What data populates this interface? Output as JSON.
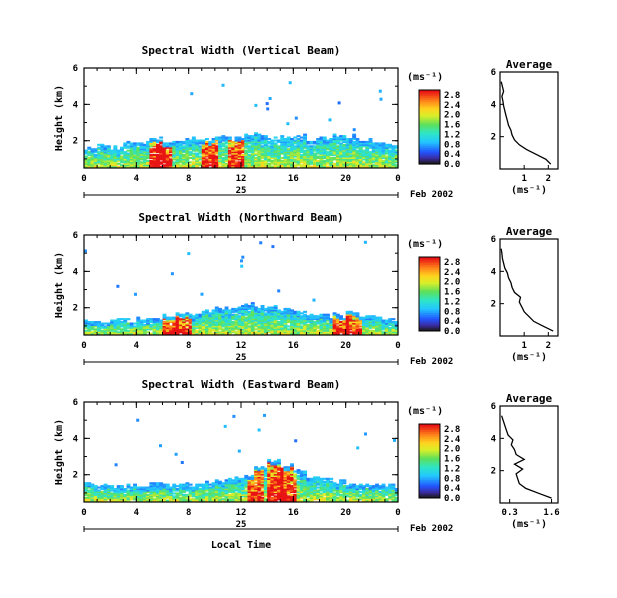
{
  "figure": {
    "xlabel": "Local Time",
    "day_label": "25",
    "date_label": "Feb 2002"
  },
  "chart_data": [
    {
      "type": "heatmap",
      "title": "Spectral Width (Vertical Beam)",
      "ylabel": "Height (km)",
      "x_ticks": [
        "0",
        "4",
        "8",
        "12",
        "16",
        "20",
        "0"
      ],
      "x_range": [
        0,
        24
      ],
      "y_ticks": [
        "2",
        "4",
        "6"
      ],
      "y_range": [
        0.5,
        6
      ],
      "colorbar": {
        "label": "(ms⁻¹)",
        "ticks": [
          "0.0",
          "0.4",
          "0.8",
          "1.2",
          "1.6",
          "2.0",
          "2.4",
          "2.8"
        ],
        "range": [
          0,
          3.0
        ]
      },
      "cloud_top_km": [
        1.6,
        1.7,
        1.6,
        1.8,
        1.9,
        2.1,
        1.9,
        2.0,
        2.1,
        2.0,
        2.2,
        2.2,
        2.3,
        2.3,
        2.1,
        2.2,
        2.2,
        2.0,
        2.1,
        2.3,
        2.2,
        2.0,
        1.9,
        1.8
      ],
      "high_values_hours": [
        5.5,
        6.0,
        9.5,
        11.5
      ],
      "average_profile": {
        "title": "Average",
        "xlabel": "(ms⁻¹)",
        "x_ticks": [
          "1",
          "2"
        ],
        "x_range": [
          0,
          2.4
        ],
        "y_ticks": [
          "2",
          "4",
          "6"
        ],
        "y_range": [
          0,
          6
        ],
        "height_km": [
          0.3,
          0.6,
          0.9,
          1.2,
          1.5,
          1.8,
          2.1,
          2.4,
          2.7,
          3.0,
          3.3,
          3.6,
          3.9,
          4.2,
          4.5,
          4.8,
          5.1,
          5.4
        ],
        "width_ms": [
          2.1,
          1.9,
          1.5,
          1.1,
          0.8,
          0.6,
          0.5,
          0.45,
          0.35,
          0.3,
          0.25,
          0.2,
          0.15,
          0.12,
          0.08,
          0.15,
          0.1,
          0.05
        ]
      }
    },
    {
      "type": "heatmap",
      "title": "Spectral Width (Northward Beam)",
      "ylabel": "Height (km)",
      "x_ticks": [
        "0",
        "4",
        "8",
        "12",
        "16",
        "20",
        "0"
      ],
      "x_range": [
        0,
        24
      ],
      "y_ticks": [
        "2",
        "4",
        "6"
      ],
      "y_range": [
        0.5,
        6
      ],
      "colorbar": {
        "label": "(ms⁻¹)",
        "ticks": [
          "0.0",
          "0.4",
          "0.8",
          "1.2",
          "1.6",
          "2.0",
          "2.4",
          "2.8"
        ],
        "range": [
          0,
          3.0
        ]
      },
      "cloud_top_km": [
        1.3,
        1.2,
        1.3,
        1.3,
        1.4,
        1.4,
        1.6,
        1.7,
        1.6,
        1.8,
        1.9,
        2.0,
        2.2,
        2.0,
        2.1,
        1.9,
        1.8,
        1.6,
        1.5,
        1.6,
        1.7,
        1.5,
        1.4,
        1.3
      ],
      "high_values_hours": [
        6.5,
        7.5,
        19.5,
        20.5
      ],
      "average_profile": {
        "title": "Average",
        "xlabel": "(ms⁻¹)",
        "x_ticks": [
          "1",
          "2"
        ],
        "x_range": [
          0,
          2.4
        ],
        "y_ticks": [
          "2",
          "4",
          "6"
        ],
        "y_range": [
          0,
          6
        ],
        "height_km": [
          0.3,
          0.6,
          0.9,
          1.2,
          1.5,
          1.8,
          2.1,
          2.4,
          2.7,
          3.0,
          3.3,
          3.6,
          3.9,
          4.2,
          4.5,
          4.8,
          5.1,
          5.4
        ],
        "width_ms": [
          2.2,
          1.8,
          1.4,
          1.2,
          1.0,
          0.9,
          0.8,
          0.85,
          0.6,
          0.5,
          0.45,
          0.35,
          0.3,
          0.2,
          0.15,
          0.1,
          0.08,
          0.05
        ]
      }
    },
    {
      "type": "heatmap",
      "title": "Spectral Width (Eastward Beam)",
      "ylabel": "Height (km)",
      "x_ticks": [
        "0",
        "4",
        "8",
        "12",
        "16",
        "20",
        "0"
      ],
      "x_range": [
        0,
        24
      ],
      "y_ticks": [
        "2",
        "4",
        "6"
      ],
      "y_range": [
        0.5,
        6
      ],
      "colorbar": {
        "label": "(ms⁻¹)",
        "ticks": [
          "0.0",
          "0.4",
          "0.8",
          "1.2",
          "1.6",
          "2.0",
          "2.4",
          "2.8"
        ],
        "range": [
          0,
          3.0
        ]
      },
      "cloud_top_km": [
        1.5,
        1.4,
        1.3,
        1.4,
        1.3,
        1.5,
        1.4,
        1.5,
        1.4,
        1.6,
        1.7,
        1.8,
        1.9,
        2.4,
        2.8,
        2.5,
        2.2,
        1.9,
        1.7,
        1.6,
        1.5,
        1.5,
        1.4,
        1.4
      ],
      "high_values_hours": [
        13.0,
        14.5,
        15.5
      ],
      "average_profile": {
        "title": "Average",
        "xlabel": "(ms⁻¹)",
        "x_ticks": [
          "0.3",
          "1.6"
        ],
        "x_range": [
          0,
          1.8
        ],
        "y_ticks": [
          "2",
          "4",
          "6"
        ],
        "y_range": [
          0,
          6
        ],
        "height_km": [
          0.3,
          0.6,
          0.9,
          1.2,
          1.5,
          1.8,
          2.1,
          2.4,
          2.7,
          3.0,
          3.3,
          3.6,
          3.9,
          4.2,
          4.5,
          4.8,
          5.1,
          5.4
        ],
        "width_ms": [
          1.6,
          1.2,
          0.8,
          0.6,
          0.55,
          0.5,
          0.7,
          0.45,
          0.75,
          0.5,
          0.45,
          0.35,
          0.4,
          0.25,
          0.2,
          0.15,
          0.1,
          0.05
        ]
      }
    }
  ]
}
